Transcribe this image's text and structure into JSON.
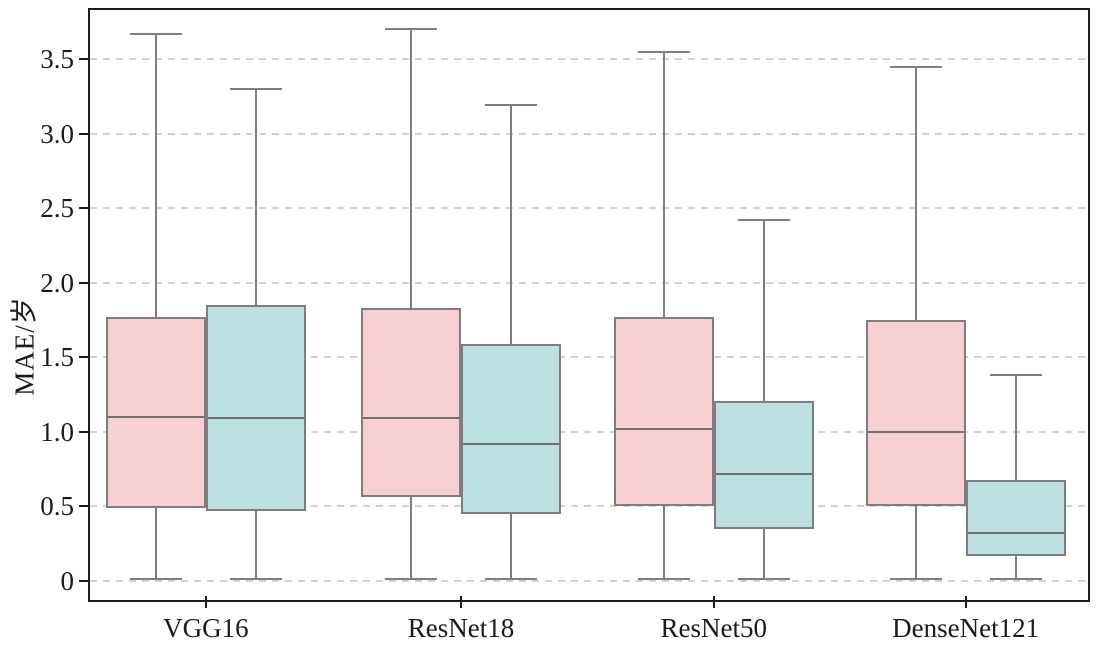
{
  "figure": {
    "title": "",
    "ylabel": "MAE/岁"
  },
  "chart_data": {
    "type": "boxplot",
    "title": "",
    "xlabel": "",
    "ylabel": "MAE/岁",
    "categories": [
      "VGG16",
      "ResNet18",
      "ResNet50",
      "DenseNet121"
    ],
    "yticks": [
      {
        "value": 0,
        "label": "0"
      },
      {
        "value": 0.5,
        "label": "0.5"
      },
      {
        "value": 1.0,
        "label": "1.0"
      },
      {
        "value": 1.5,
        "label": "1.5"
      },
      {
        "value": 2.0,
        "label": "2.0"
      },
      {
        "value": 2.5,
        "label": "2.5"
      },
      {
        "value": 3.0,
        "label": "3.0"
      },
      {
        "value": 3.5,
        "label": "3.5"
      }
    ],
    "ylim": [
      -0.142,
      3.844
    ],
    "grid": "horizontal-dashed",
    "legend_position": "none",
    "colors": {
      "pink_fill": "#f7cfd2",
      "teal_fill": "#bce0e0",
      "box_edge": "#7e7e7e",
      "axis": "#1c1c1c",
      "gridline": "#d2d2d2"
    },
    "series": [
      {
        "name": "pink",
        "fill": "#f7cfd2",
        "boxes": [
          {
            "category": "VGG16",
            "whisker_low": 0.01,
            "q1": 0.49,
            "median": 1.1,
            "q3": 1.77,
            "whisker_high": 3.67
          },
          {
            "category": "ResNet18",
            "whisker_low": 0.01,
            "q1": 0.56,
            "median": 1.09,
            "q3": 1.83,
            "whisker_high": 3.7
          },
          {
            "category": "ResNet50",
            "whisker_low": 0.01,
            "q1": 0.5,
            "median": 1.02,
            "q3": 1.77,
            "whisker_high": 3.55
          },
          {
            "category": "DenseNet121",
            "whisker_low": 0.01,
            "q1": 0.5,
            "median": 1.0,
            "q3": 1.75,
            "whisker_high": 3.45
          }
        ]
      },
      {
        "name": "teal",
        "fill": "#bce0e0",
        "boxes": [
          {
            "category": "VGG16",
            "whisker_low": 0.01,
            "q1": 0.47,
            "median": 1.09,
            "q3": 1.85,
            "whisker_high": 3.3
          },
          {
            "category": "ResNet18",
            "whisker_low": 0.01,
            "q1": 0.45,
            "median": 0.92,
            "q3": 1.59,
            "whisker_high": 3.19
          },
          {
            "category": "ResNet50",
            "whisker_low": 0.01,
            "q1": 0.35,
            "median": 0.72,
            "q3": 1.21,
            "whisker_high": 2.42
          },
          {
            "category": "DenseNet121",
            "whisker_low": 0.01,
            "q1": 0.17,
            "median": 0.32,
            "q3": 0.68,
            "whisker_high": 1.38
          }
        ]
      }
    ]
  }
}
